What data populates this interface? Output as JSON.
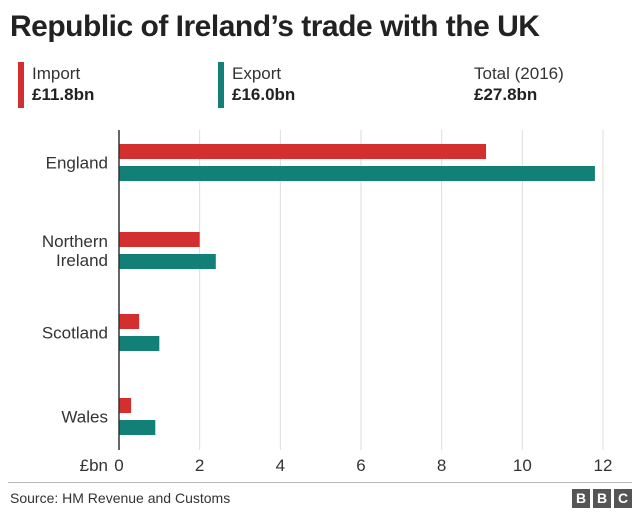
{
  "title": "Republic of Ireland’s trade with the UK",
  "legend": {
    "import": {
      "label": "Import",
      "value": "£11.8bn",
      "color": "#d32f2f"
    },
    "export": {
      "label": "Export",
      "value": "£16.0bn",
      "color": "#138078"
    },
    "total": {
      "label": "Total (2016)",
      "value": "£27.8bn"
    }
  },
  "chart_data": {
    "type": "bar",
    "orientation": "horizontal",
    "categories": [
      "England",
      "Northern Ireland",
      "Scotland",
      "Wales"
    ],
    "category_lines": [
      [
        "England"
      ],
      [
        "Northern",
        "Ireland"
      ],
      [
        "Scotland"
      ],
      [
        "Wales"
      ]
    ],
    "series": [
      {
        "name": "Import",
        "color": "#d32f2f",
        "values": [
          9.1,
          2.0,
          0.5,
          0.3
        ]
      },
      {
        "name": "Export",
        "color": "#138078",
        "values": [
          11.8,
          2.4,
          1.0,
          0.9
        ]
      }
    ],
    "xlim": [
      0,
      12
    ],
    "xticks": [
      "0",
      "2",
      "4",
      "6",
      "8",
      "10",
      "12"
    ],
    "xunit": "£bn",
    "grid": true
  },
  "footer": {
    "source": "Source: HM Revenue and Customs",
    "logo": [
      "B",
      "B",
      "C"
    ]
  }
}
